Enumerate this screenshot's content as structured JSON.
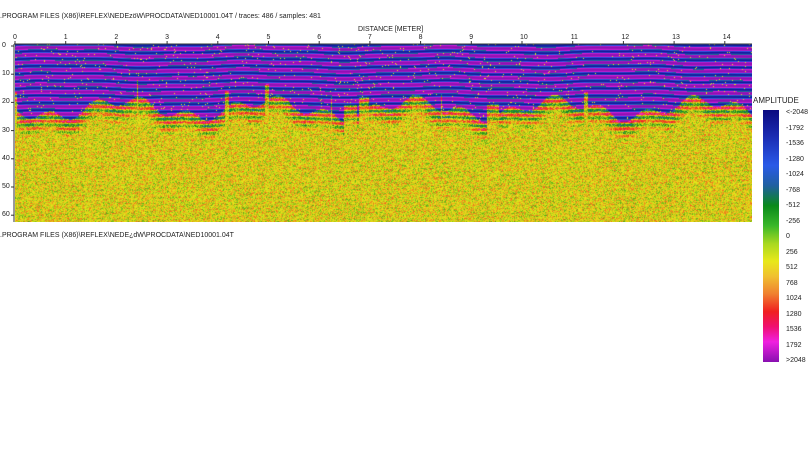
{
  "header": {
    "file_info": ".PROGRAM FILES (X86)\\REFLEX\\NEDEzöW\\PROCDATA\\NED10001.04T / traces: 486 / samples: 481"
  },
  "footer": {
    "file_path": ".PROGRAM FILES (X86)\\REFLEX\\NEDE¿dW\\PROCDATA\\NED10001.04T"
  },
  "plot": {
    "x_axis_title": "DISTANCE [METER]",
    "x_ticks": [
      "0",
      "1",
      "2",
      "3",
      "4",
      "5",
      "6",
      "7",
      "8",
      "9",
      "10",
      "11",
      "12",
      "13",
      "14"
    ],
    "y_ticks": [
      "0",
      "10",
      "20",
      "30",
      "40",
      "50",
      "60"
    ],
    "x_range": [
      0,
      14.5
    ],
    "y_range": [
      0,
      62
    ],
    "colormap": [
      "#0a0a80",
      "#2a5ae8",
      "#0a8a1a",
      "#e8e81a",
      "#f02020",
      "#f020e0",
      "#8810b0"
    ]
  },
  "colorbar": {
    "title": "AMPLITUDE",
    "labels": [
      "<-2048",
      "-1792",
      "-1536",
      "-1280",
      "-1024",
      "-768",
      "-512",
      "-256",
      "0",
      "256",
      "512",
      "768",
      "1024",
      "1280",
      "1536",
      "1792",
      ">2048"
    ]
  }
}
